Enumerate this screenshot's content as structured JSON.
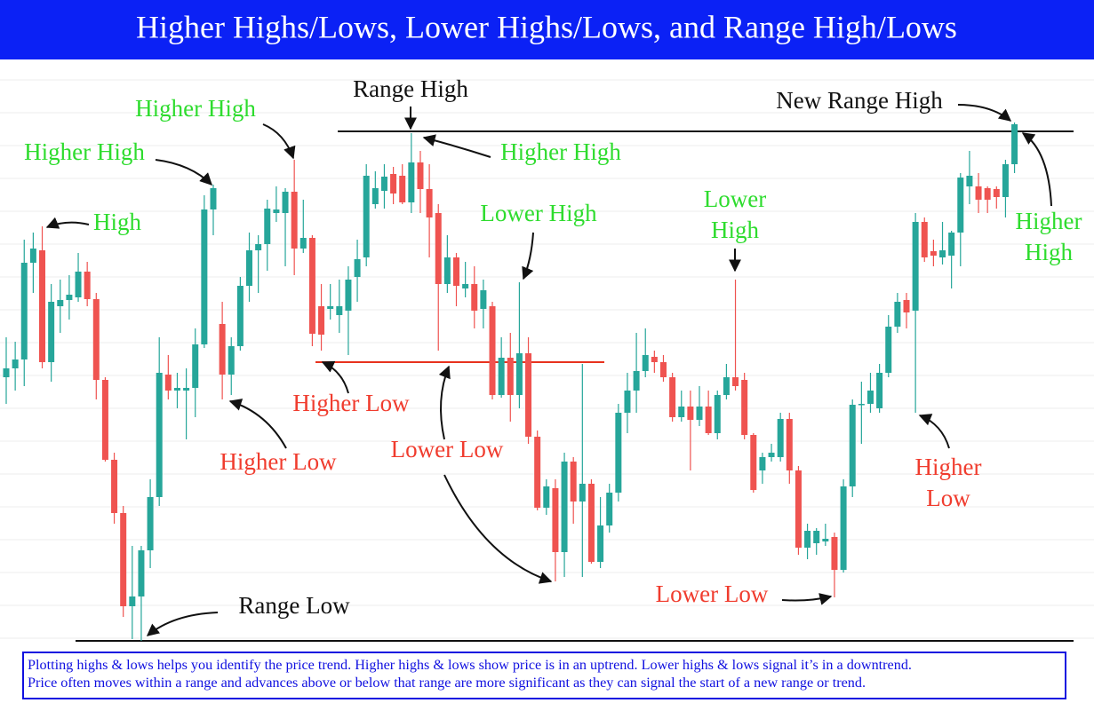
{
  "chart_data": {
    "type": "candlestick",
    "title": "Higher Highs/Lows, Lower Highs/Lows, and Range High/Lows",
    "ylim": [
      0,
      655
    ],
    "up_color": "#26a69a",
    "down_color": "#ef5350",
    "open": [
      297,
      307,
      317,
      426,
      440,
      314,
      377,
      384,
      387,
      416,
      385,
      294,
      204,
      144,
      39,
      50,
      102,
      162,
      300,
      282,
      282,
      285,
      334,
      486,
      357,
      300,
      332,
      400,
      440,
      447,
      482,
      482,
      506,
      442,
      454,
      377,
      374,
      367,
      372,
      410,
      432,
      492,
      507,
      526,
      524,
      494,
      539,
      509,
      482,
      402,
      432,
      397,
      402,
      374,
      377,
      277,
      319,
      277,
      324,
      230,
      150,
      172,
      100,
      202,
      157,
      177,
      89,
      130,
      167,
      257,
      282,
      304,
      320,
      314,
      297,
      252,
      264,
      249,
      264,
      234,
      277,
      297,
      294,
      232,
      192,
      207,
      207,
      250,
      192,
      105,
      110,
      112,
      117,
      80,
      174,
      266,
      267,
      262,
      302,
      354,
      384,
      372,
      472,
      439,
      432,
      434,
      460,
      512,
      512,
      510,
      509,
      500,
      537
    ],
    "high": [
      342,
      337,
      452,
      460,
      467,
      402,
      407,
      412,
      437,
      427,
      392,
      297,
      212,
      152,
      107,
      107,
      182,
      342,
      322,
      302,
      307,
      352,
      502,
      514,
      382,
      342,
      410,
      460,
      457,
      497,
      512,
      510,
      542,
      497,
      457,
      402,
      402,
      407,
      422,
      452,
      537,
      529,
      537,
      534,
      537,
      572,
      552,
      537,
      492,
      457,
      437,
      427,
      422,
      407,
      382,
      342,
      347,
      404,
      342,
      237,
      182,
      182,
      212,
      207,
      312,
      182,
      162,
      177,
      267,
      302,
      347,
      352,
      327,
      322,
      302,
      282,
      282,
      287,
      282,
      282,
      312,
      407,
      302,
      234,
      212,
      222,
      257,
      257,
      197,
      132,
      127,
      132,
      122,
      182,
      272,
      292,
      302,
      312,
      367,
      392,
      392,
      482,
      477,
      452,
      472,
      462,
      527,
      552,
      527,
      512,
      512,
      542,
      584
    ],
    "low": [
      267,
      282,
      287,
      392,
      307,
      292,
      347,
      362,
      382,
      377,
      272,
      202,
      132,
      27,
      2,
      0,
      82,
      152,
      272,
      262,
      227,
      252,
      330,
      457,
      272,
      277,
      327,
      382,
      392,
      417,
      472,
      422,
      412,
      437,
      332,
      327,
      362,
      347,
      322,
      382,
      422,
      487,
      487,
      492,
      492,
      482,
      482,
      432,
      327,
      392,
      377,
      387,
      352,
      352,
      272,
      274,
      247,
      262,
      222,
      147,
      142,
      67,
      72,
      132,
      72,
      87,
      82,
      122,
      157,
      234,
      257,
      297,
      302,
      292,
      247,
      247,
      192,
      242,
      232,
      227,
      272,
      282,
      227,
      167,
      177,
      202,
      202,
      177,
      97,
      92,
      97,
      107,
      49,
      77,
      162,
      222,
      257,
      257,
      297,
      347,
      352,
      257,
      427,
      422,
      424,
      397,
      422,
      492,
      482,
      482,
      487,
      477,
      527
    ],
    "close": [
      307,
      317,
      426,
      442,
      314,
      382,
      384,
      390,
      416,
      385,
      294,
      204,
      144,
      39,
      50,
      102,
      162,
      302,
      282,
      285,
      285,
      334,
      486,
      510,
      300,
      332,
      400,
      440,
      447,
      487,
      486,
      506,
      442,
      454,
      346,
      345,
      377,
      377,
      407,
      430,
      524,
      510,
      523,
      504,
      494,
      539,
      509,
      477,
      402,
      432,
      400,
      402,
      372,
      395,
      277,
      319,
      277,
      324,
      230,
      150,
      174,
      100,
      202,
      157,
      177,
      89,
      130,
      167,
      257,
      282,
      304,
      322,
      314,
      297,
      252,
      264,
      249,
      264,
      234,
      277,
      297,
      287,
      232,
      170,
      207,
      212,
      250,
      192,
      105,
      124,
      124,
      115,
      80,
      174,
      266,
      267,
      282,
      302,
      354,
      382,
      370,
      472,
      432,
      434,
      440,
      460,
      522,
      524,
      497,
      497,
      500,
      537,
      582
    ],
    "levels": [
      {
        "value": 574,
        "color": "#111111"
      },
      {
        "value": 0,
        "color": "#111111"
      },
      {
        "value": 314,
        "color": "#e8321e"
      }
    ],
    "annotations": [
      {
        "lines": [
          "Higher High"
        ],
        "color": "#2edc2e"
      },
      {
        "lines": [
          "Higher High"
        ],
        "color": "#2edc2e"
      },
      {
        "lines": [
          "High"
        ],
        "color": "#2edc2e"
      },
      {
        "lines": [
          "Range High"
        ],
        "color": "#111111"
      },
      {
        "lines": [
          "Higher High"
        ],
        "color": "#2edc2e"
      },
      {
        "lines": [
          "Lower High"
        ],
        "color": "#2edc2e"
      },
      {
        "lines": [
          "Lower",
          "High"
        ],
        "color": "#2edc2e"
      },
      {
        "lines": [
          "New Range High"
        ],
        "color": "#111111"
      },
      {
        "lines": [
          "Higher",
          "High"
        ],
        "color": "#2edc2e"
      },
      {
        "lines": [
          "Higher Low"
        ],
        "color": "#f03c2e"
      },
      {
        "lines": [
          "Higher Low"
        ],
        "color": "#f03c2e"
      },
      {
        "lines": [
          "Lower Low"
        ],
        "color": "#f03c2e"
      },
      {
        "lines": [
          "Higher",
          "Low"
        ],
        "color": "#f03c2e"
      },
      {
        "lines": [
          "Lower Low"
        ],
        "color": "#f03c2e"
      },
      {
        "lines": [
          "Range Low"
        ],
        "color": "#111111"
      }
    ]
  },
  "footer": {
    "lines": [
      "Plotting highs & lows helps you identify the price trend. Higher highs & lows show price is in an uptrend. Lower highs & lows signal it’s in a downtrend.",
      "Price often moves within a range and advances above or below that range are more significant as they can signal the start of a new range or trend."
    ]
  }
}
